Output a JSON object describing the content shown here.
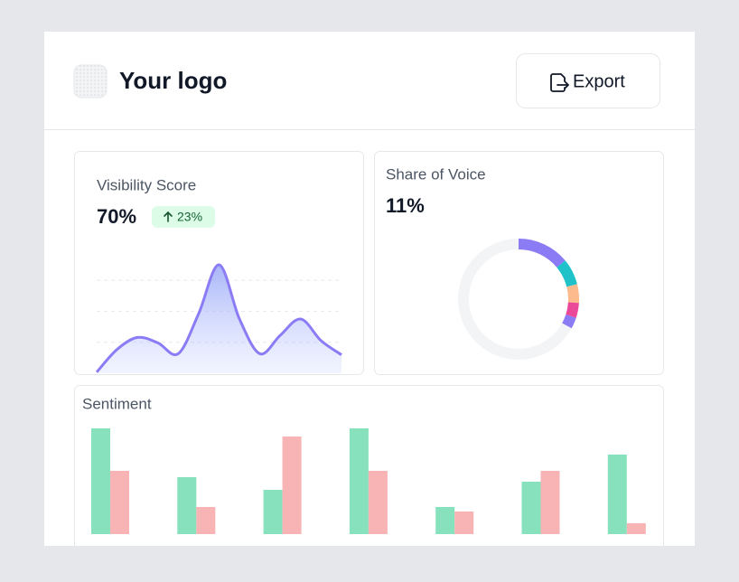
{
  "header": {
    "logo": "Your logo",
    "export": "Export"
  },
  "visibility": {
    "title": "Visibility Score",
    "value": "70%",
    "change": "23%",
    "chart": {
      "type": "line",
      "values": [
        1,
        22,
        33,
        28,
        18,
        55,
        100,
        50,
        18,
        35,
        50,
        30,
        17
      ],
      "ylim": [
        0,
        100
      ],
      "color": "#8b7cf6",
      "grid": true
    }
  },
  "share_of_voice": {
    "title": "Share of Voice",
    "value": "11%",
    "chart": {
      "type": "donut",
      "values": [
        14,
        7,
        5,
        4,
        3
      ],
      "colors": [
        "#8b7cf6",
        "#1fc2c8",
        "#fdba8c",
        "#ec4899",
        "#8b7cf6"
      ],
      "track_color": "#f3f4f6"
    }
  },
  "sentiment": {
    "title": "Sentiment",
    "chart": {
      "type": "bar",
      "ylim": [
        0,
        120
      ],
      "series": [
        {
          "color": "#86e1bc",
          "values": [
            117,
            63,
            49,
            117,
            30,
            58,
            88
          ]
        },
        {
          "color": "#f8b4b4",
          "values": [
            70,
            30,
            108,
            70,
            25,
            70,
            12
          ]
        }
      ]
    }
  }
}
